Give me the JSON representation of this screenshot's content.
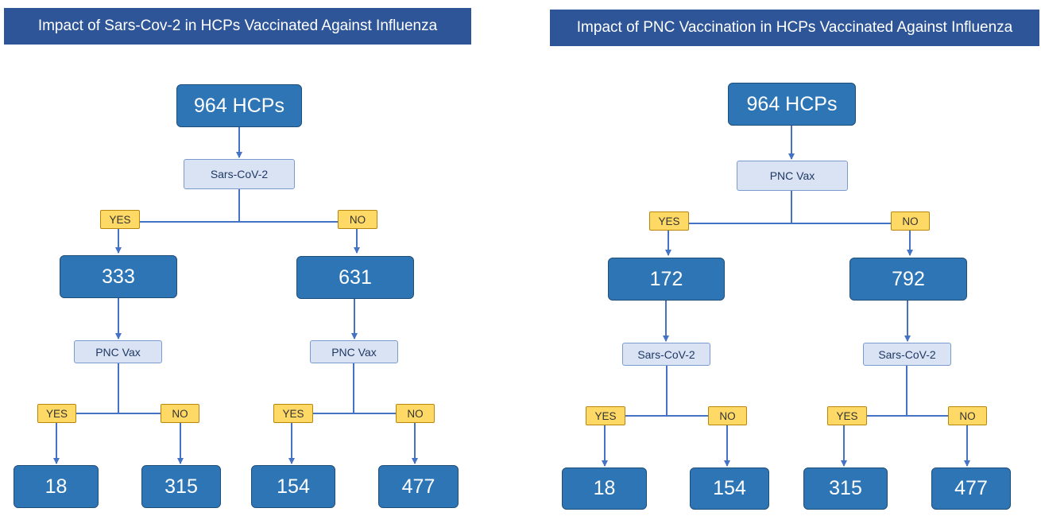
{
  "panels": [
    {
      "title": "Impact of Sars-Cov-2 in HCPs Vaccinated Against Influenza",
      "root": "964  HCPs",
      "level1_question": "Sars-CoV-2",
      "level2_question": "PNC Vax",
      "yes_label": "YES",
      "no_label": "NO",
      "yes_count": "333",
      "no_count": "631",
      "yes_yes": "18",
      "yes_no": "315",
      "no_yes": "154",
      "no_no": "477",
      "colors": {
        "title_bg": "#2e5597",
        "count_bg": "#2e75b6",
        "question_bg": "#dae3f3",
        "answer_bg": "#ffd966",
        "connector": "#4472c4"
      }
    },
    {
      "title": "Impact of PNC Vaccination in HCPs Vaccinated Against Influenza",
      "root": "964 HCPs",
      "level1_question": "PNC Vax",
      "level2_question": "Sars-CoV-2",
      "yes_label": "YES",
      "no_label": "NO",
      "yes_count": "172",
      "no_count": "792",
      "yes_yes": "18",
      "yes_no": "154",
      "no_yes": "315",
      "no_no": "477",
      "colors": {
        "title_bg": "#2e5597",
        "count_bg": "#2e75b6",
        "question_bg": "#dae3f3",
        "answer_bg": "#ffd966",
        "connector": "#4472c4"
      }
    }
  ]
}
